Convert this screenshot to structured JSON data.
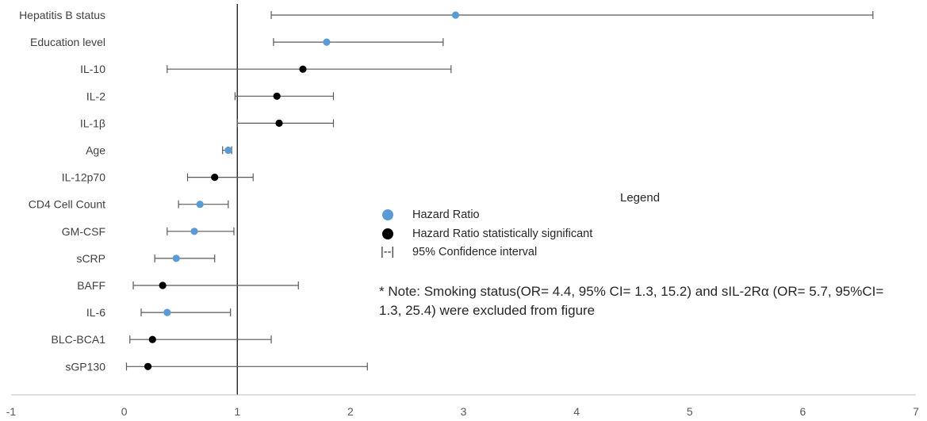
{
  "chart_data": {
    "type": "forest",
    "categories": [
      "Hepatitis B status",
      "Education level",
      "IL-10",
      "IL-2",
      "IL-1β",
      "Age",
      "IL-12p70",
      "CD4 Cell Count",
      "GM-CSF",
      "sCRP",
      "BAFF",
      "IL-6",
      "BLC-BCA1",
      "sGP130"
    ],
    "values": [
      2.93,
      1.79,
      1.58,
      1.35,
      1.37,
      0.92,
      0.8,
      0.67,
      0.62,
      0.46,
      0.34,
      0.38,
      0.25,
      0.21
    ],
    "ci_lower": [
      1.3,
      1.32,
      0.38,
      0.98,
      1.0,
      0.87,
      0.56,
      0.48,
      0.38,
      0.27,
      0.08,
      0.15,
      0.05,
      0.02
    ],
    "ci_upper": [
      6.62,
      2.82,
      2.89,
      1.85,
      1.85,
      0.95,
      1.14,
      0.92,
      0.97,
      0.8,
      1.54,
      0.94,
      1.3,
      2.15
    ],
    "significant": [
      false,
      false,
      true,
      true,
      true,
      false,
      true,
      false,
      false,
      false,
      true,
      false,
      true,
      true
    ],
    "x_ticks": [
      "-1",
      "0",
      "1",
      "2",
      "3",
      "4",
      "5",
      "6",
      "7"
    ],
    "xlim": [
      -1,
      7
    ],
    "reference_line": 1,
    "colors": {
      "hazard_ratio": "#5b9bd5",
      "significant": "#000000",
      "ci": "#595959",
      "axis": "#bfbfbf"
    }
  },
  "legend": {
    "title": "Legend",
    "items": [
      {
        "label": "Hazard Ratio"
      },
      {
        "label": "Hazard Ratio statistically significant"
      },
      {
        "glyph": "|--|",
        "label": "95% Confidence interval"
      }
    ]
  },
  "note": "* Note: Smoking status(OR= 4.4, 95% CI= 1.3, 15.2)  and sIL-2Rα (OR= 5.7, 95%CI= 1.3, 25.4) were excluded from figure"
}
